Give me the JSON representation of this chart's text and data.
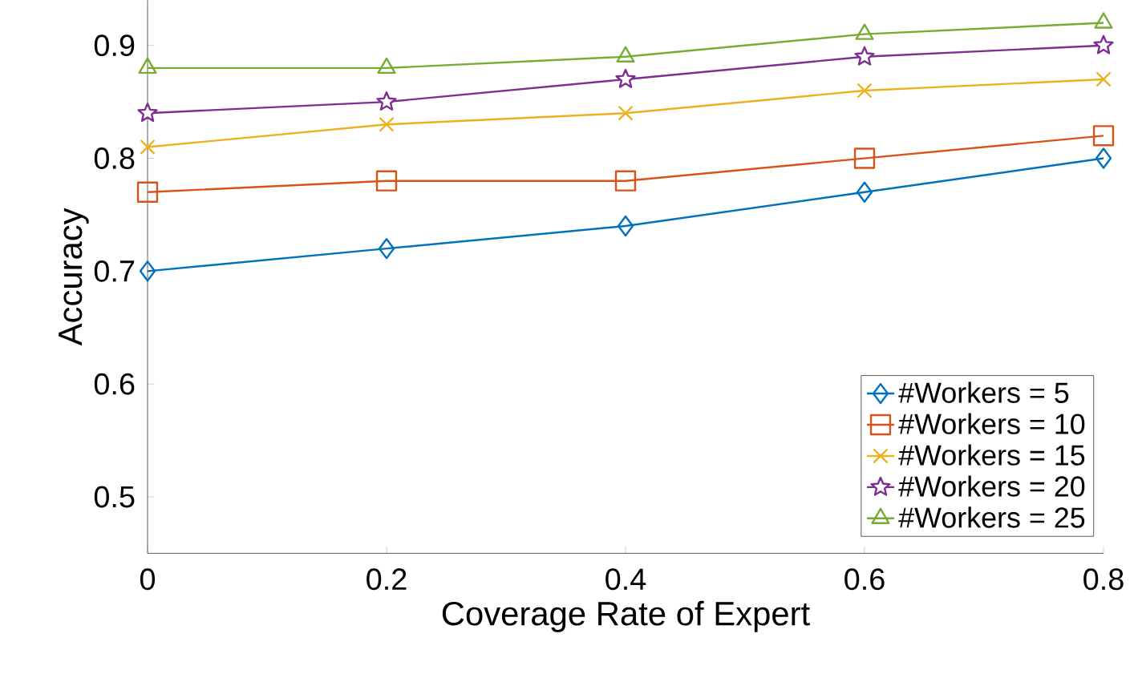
{
  "chart_data": {
    "type": "line",
    "xlabel": "Coverage Rate of Expert",
    "ylabel": "Accuracy",
    "x": [
      0,
      0.2,
      0.4,
      0.6,
      0.8
    ],
    "series": [
      {
        "name": "#Workers = 5",
        "color": "#0072bd",
        "marker": "diamond",
        "values": [
          0.7,
          0.72,
          0.74,
          0.77,
          0.8
        ]
      },
      {
        "name": "#Workers = 10",
        "color": "#d95319",
        "marker": "square",
        "values": [
          0.77,
          0.78,
          0.78,
          0.8,
          0.82
        ]
      },
      {
        "name": "#Workers = 15",
        "color": "#edb120",
        "marker": "cross",
        "values": [
          0.81,
          0.83,
          0.84,
          0.86,
          0.87
        ]
      },
      {
        "name": "#Workers = 20",
        "color": "#7e2f8e",
        "marker": "star",
        "values": [
          0.84,
          0.85,
          0.87,
          0.89,
          0.9
        ]
      },
      {
        "name": "#Workers = 25",
        "color": "#77ac30",
        "marker": "triangle",
        "values": [
          0.88,
          0.88,
          0.89,
          0.91,
          0.92
        ]
      }
    ],
    "xlim": [
      0,
      0.8
    ],
    "ylim": [
      0.45,
      0.94
    ],
    "xticks": [
      0,
      0.2,
      0.4,
      0.6,
      0.8
    ],
    "yticks": [
      0.5,
      0.6,
      0.7,
      0.8,
      0.9
    ],
    "grid": false,
    "legend": "bottom right",
    "line_style": "solid"
  }
}
